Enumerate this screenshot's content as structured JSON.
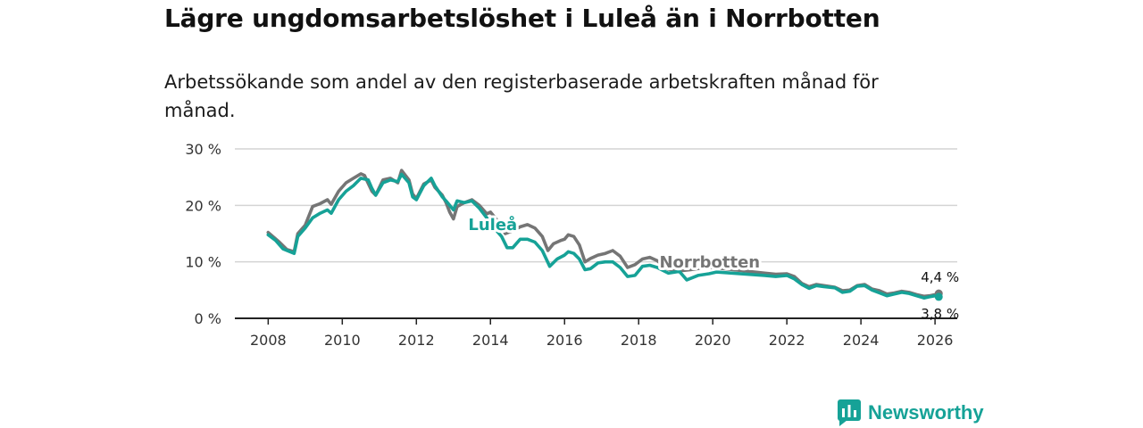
{
  "chart_data": {
    "type": "line",
    "title": "Lägre ungdomsarbetslöshet i Luleå än i Norrbotten",
    "subtitle": "Arbetssökande som andel av den registerbaserade arbetskraften månad för månad.",
    "xlabel": "",
    "ylabel": "",
    "xlim": [
      2007.1,
      2026.6
    ],
    "ylim": [
      0,
      30
    ],
    "grid": true,
    "x_ticks": [
      {
        "value": 2008,
        "label": "2008"
      },
      {
        "value": 2010,
        "label": "2010"
      },
      {
        "value": 2012,
        "label": "2012"
      },
      {
        "value": 2014,
        "label": "2014"
      },
      {
        "value": 2016,
        "label": "2016"
      },
      {
        "value": 2018,
        "label": "2018"
      },
      {
        "value": 2020,
        "label": "2020"
      },
      {
        "value": 2022,
        "label": "2022"
      },
      {
        "value": 2024,
        "label": "2024"
      },
      {
        "value": 2026,
        "label": "2026"
      }
    ],
    "y_ticks": [
      {
        "value": 0,
        "label": "0 %"
      },
      {
        "value": 10,
        "label": "10 %"
      },
      {
        "value": 20,
        "label": "20 %"
      },
      {
        "value": 30,
        "label": "30 %"
      }
    ],
    "series": [
      {
        "name": "Norrbotten",
        "label": "Norrbotten",
        "color": "#757575",
        "end_label": "4,4 %",
        "points": [
          [
            2008.0,
            15.2
          ],
          [
            2008.3,
            13.5
          ],
          [
            2008.5,
            12.2
          ],
          [
            2008.7,
            11.8
          ],
          [
            2008.8,
            15.0
          ],
          [
            2009.0,
            16.5
          ],
          [
            2009.2,
            19.8
          ],
          [
            2009.4,
            20.3
          ],
          [
            2009.6,
            21.0
          ],
          [
            2009.7,
            20.2
          ],
          [
            2009.9,
            22.5
          ],
          [
            2010.1,
            24.0
          ],
          [
            2010.3,
            24.8
          ],
          [
            2010.5,
            25.6
          ],
          [
            2010.6,
            25.3
          ],
          [
            2010.8,
            22.5
          ],
          [
            2010.9,
            21.8
          ],
          [
            2011.1,
            24.5
          ],
          [
            2011.3,
            24.8
          ],
          [
            2011.5,
            24.0
          ],
          [
            2011.6,
            26.2
          ],
          [
            2011.8,
            24.5
          ],
          [
            2011.9,
            22.0
          ],
          [
            2012.0,
            21.2
          ],
          [
            2012.2,
            23.8
          ],
          [
            2012.4,
            24.5
          ],
          [
            2012.5,
            23.2
          ],
          [
            2012.7,
            21.8
          ],
          [
            2012.8,
            20.5
          ],
          [
            2012.9,
            18.8
          ],
          [
            2013.0,
            17.6
          ],
          [
            2013.1,
            19.8
          ],
          [
            2013.3,
            20.5
          ],
          [
            2013.5,
            21.0
          ],
          [
            2013.7,
            20.0
          ],
          [
            2013.9,
            18.5
          ],
          [
            2014.0,
            18.8
          ],
          [
            2014.2,
            17.2
          ],
          [
            2014.4,
            15.0
          ],
          [
            2014.6,
            15.5
          ],
          [
            2014.8,
            16.2
          ],
          [
            2015.0,
            16.6
          ],
          [
            2015.2,
            16.0
          ],
          [
            2015.4,
            14.5
          ],
          [
            2015.55,
            12.0
          ],
          [
            2015.7,
            13.2
          ],
          [
            2015.9,
            13.8
          ],
          [
            2016.0,
            14.0
          ],
          [
            2016.1,
            14.8
          ],
          [
            2016.25,
            14.5
          ],
          [
            2016.4,
            13.0
          ],
          [
            2016.55,
            10.0
          ],
          [
            2016.7,
            10.6
          ],
          [
            2016.9,
            11.2
          ],
          [
            2017.1,
            11.5
          ],
          [
            2017.3,
            12.0
          ],
          [
            2017.5,
            11.0
          ],
          [
            2017.7,
            9.0
          ],
          [
            2017.9,
            9.5
          ],
          [
            2018.1,
            10.5
          ],
          [
            2018.3,
            10.8
          ],
          [
            2018.5,
            10.2
          ],
          [
            2018.8,
            8.7
          ],
          [
            2019.1,
            8.4
          ],
          [
            2019.4,
            8.6
          ],
          [
            2019.7,
            8.9
          ],
          [
            2020.0,
            9.0
          ],
          [
            2021.4,
            8.0
          ],
          [
            2021.7,
            7.8
          ],
          [
            2022.0,
            7.9
          ],
          [
            2022.2,
            7.4
          ],
          [
            2022.4,
            6.2
          ],
          [
            2022.6,
            5.6
          ],
          [
            2022.8,
            6.0
          ],
          [
            2023.0,
            5.8
          ],
          [
            2023.3,
            5.5
          ],
          [
            2023.5,
            4.9
          ],
          [
            2023.7,
            5.0
          ],
          [
            2023.9,
            5.8
          ],
          [
            2024.1,
            6.0
          ],
          [
            2024.3,
            5.2
          ],
          [
            2024.5,
            4.9
          ],
          [
            2024.7,
            4.3
          ],
          [
            2024.9,
            4.5
          ],
          [
            2025.1,
            4.8
          ],
          [
            2025.3,
            4.6
          ],
          [
            2025.5,
            4.2
          ],
          [
            2025.7,
            3.9
          ],
          [
            2025.85,
            4.0
          ],
          [
            2026.0,
            4.2
          ],
          [
            2026.1,
            4.4
          ]
        ]
      },
      {
        "name": "Luleå",
        "label": "Luleå",
        "color": "#16a297",
        "end_label": "3,8 %",
        "points": [
          [
            2008.0,
            14.8
          ],
          [
            2008.2,
            13.8
          ],
          [
            2008.4,
            12.3
          ],
          [
            2008.7,
            11.5
          ],
          [
            2008.8,
            14.5
          ],
          [
            2009.0,
            16.0
          ],
          [
            2009.2,
            17.8
          ],
          [
            2009.4,
            18.6
          ],
          [
            2009.6,
            19.2
          ],
          [
            2009.7,
            18.6
          ],
          [
            2009.9,
            21.0
          ],
          [
            2010.1,
            22.5
          ],
          [
            2010.3,
            23.5
          ],
          [
            2010.5,
            24.8
          ],
          [
            2010.7,
            24.5
          ],
          [
            2010.8,
            23.0
          ],
          [
            2010.9,
            21.8
          ],
          [
            2011.1,
            24.0
          ],
          [
            2011.3,
            24.5
          ],
          [
            2011.5,
            24.2
          ],
          [
            2011.6,
            25.5
          ],
          [
            2011.8,
            24.0
          ],
          [
            2011.9,
            21.5
          ],
          [
            2012.0,
            21.0
          ],
          [
            2012.2,
            23.5
          ],
          [
            2012.4,
            24.8
          ],
          [
            2012.5,
            23.5
          ],
          [
            2012.7,
            21.5
          ],
          [
            2012.8,
            20.8
          ],
          [
            2012.9,
            20.0
          ],
          [
            2013.0,
            19.2
          ],
          [
            2013.1,
            20.8
          ],
          [
            2013.3,
            20.5
          ],
          [
            2013.5,
            20.8
          ],
          [
            2013.7,
            19.5
          ],
          [
            2013.9,
            17.8
          ],
          [
            2014.1,
            16.0
          ],
          [
            2014.3,
            14.5
          ],
          [
            2014.45,
            12.5
          ],
          [
            2014.6,
            12.5
          ],
          [
            2014.8,
            14.0
          ],
          [
            2015.0,
            14.0
          ],
          [
            2015.2,
            13.5
          ],
          [
            2015.4,
            12.0
          ],
          [
            2015.6,
            9.2
          ],
          [
            2015.8,
            10.5
          ],
          [
            2016.0,
            11.2
          ],
          [
            2016.1,
            11.8
          ],
          [
            2016.25,
            11.5
          ],
          [
            2016.4,
            10.5
          ],
          [
            2016.55,
            8.6
          ],
          [
            2016.7,
            8.8
          ],
          [
            2016.9,
            9.8
          ],
          [
            2017.1,
            10.0
          ],
          [
            2017.3,
            10.0
          ],
          [
            2017.5,
            9.0
          ],
          [
            2017.7,
            7.4
          ],
          [
            2017.9,
            7.6
          ],
          [
            2018.1,
            9.2
          ],
          [
            2018.3,
            9.4
          ],
          [
            2018.5,
            9.0
          ],
          [
            2018.8,
            8.0
          ],
          [
            2019.1,
            8.3
          ],
          [
            2019.3,
            6.8
          ],
          [
            2019.6,
            7.6
          ],
          [
            2019.9,
            7.9
          ],
          [
            2020.1,
            8.2
          ],
          [
            2021.4,
            7.6
          ],
          [
            2021.7,
            7.4
          ],
          [
            2022.0,
            7.6
          ],
          [
            2022.2,
            7.0
          ],
          [
            2022.4,
            6.0
          ],
          [
            2022.6,
            5.3
          ],
          [
            2022.8,
            5.8
          ],
          [
            2023.0,
            5.6
          ],
          [
            2023.3,
            5.4
          ],
          [
            2023.5,
            4.6
          ],
          [
            2023.7,
            4.8
          ],
          [
            2023.9,
            5.7
          ],
          [
            2024.1,
            5.8
          ],
          [
            2024.3,
            5.0
          ],
          [
            2024.5,
            4.5
          ],
          [
            2024.7,
            4.0
          ],
          [
            2024.9,
            4.3
          ],
          [
            2025.1,
            4.6
          ],
          [
            2025.3,
            4.4
          ],
          [
            2025.5,
            4.0
          ],
          [
            2025.7,
            3.6
          ],
          [
            2025.85,
            3.8
          ],
          [
            2026.0,
            4.0
          ],
          [
            2026.1,
            3.8
          ]
        ]
      }
    ]
  },
  "brand": {
    "name": "Newsworthy",
    "icon": "newsworthy-logo-icon",
    "color": "#16a297"
  }
}
